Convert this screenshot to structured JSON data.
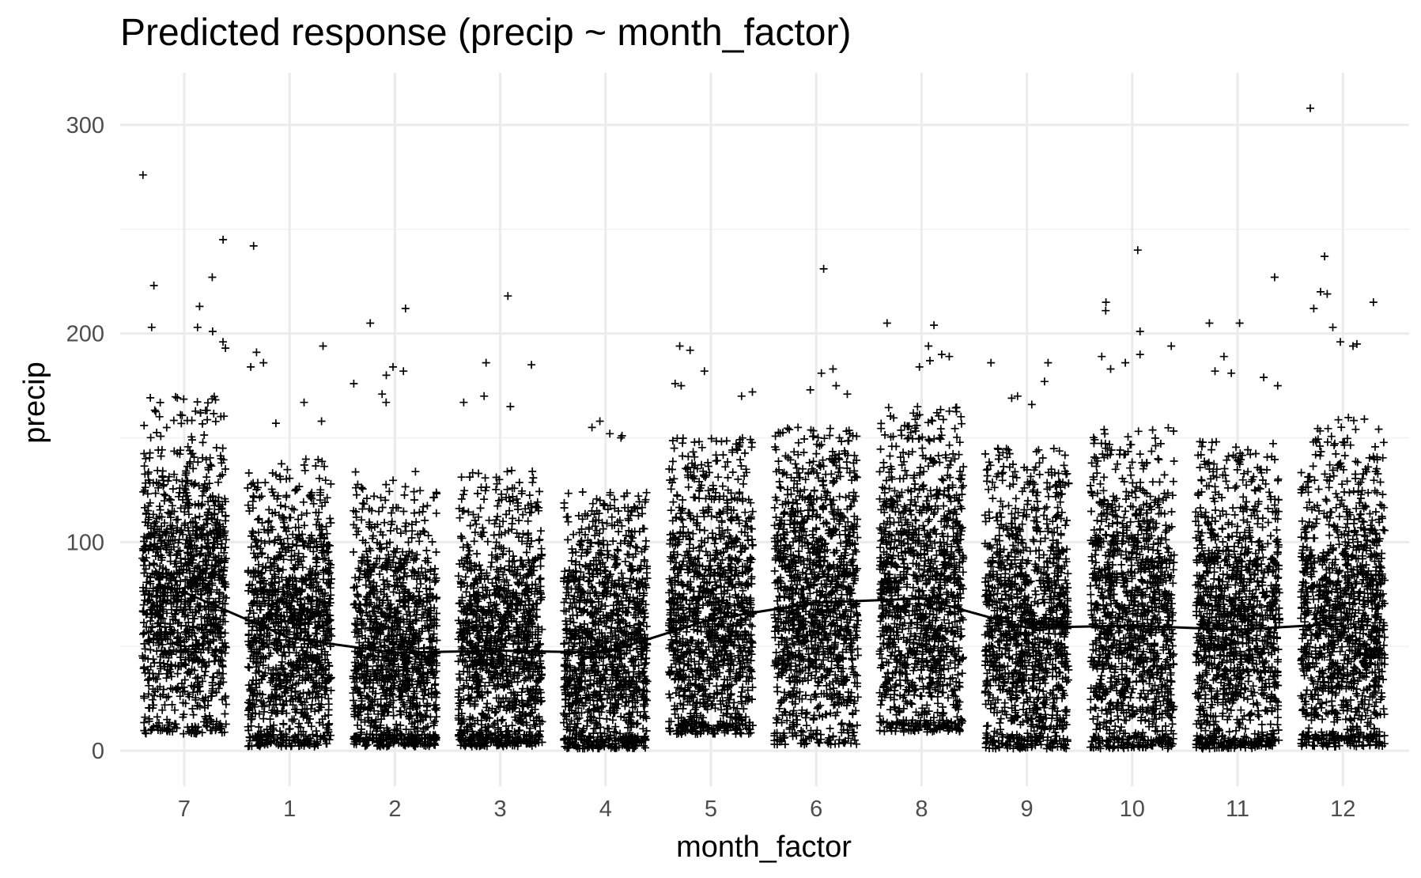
{
  "chart_data": {
    "type": "scatter",
    "title": "Predicted response (precip ~ month_factor)",
    "xlabel": "month_factor",
    "ylabel": "precip",
    "categories": [
      "7",
      "1",
      "2",
      "3",
      "4",
      "5",
      "6",
      "8",
      "9",
      "10",
      "11",
      "12"
    ],
    "y_ticks": [
      0,
      100,
      200,
      300
    ],
    "ylim": [
      -17,
      325
    ],
    "grid": true,
    "legend": "none",
    "marker": "plus",
    "jitter": true,
    "fitted_line": {
      "name": "",
      "values": [
        76,
        54,
        47,
        48,
        47,
        63,
        71,
        73,
        59,
        60,
        58,
        61
      ]
    },
    "series": [
      {
        "name": "",
        "distribution": [
          {
            "category": "7",
            "q_low": 8,
            "q1": 55,
            "median": 76,
            "q3": 100,
            "q_high": 170,
            "outliers": [
              276,
              245,
              227,
              223,
              213,
              203,
              203,
              201,
              196,
              193
            ]
          },
          {
            "category": "1",
            "q_low": 2,
            "q1": 33,
            "median": 54,
            "q3": 78,
            "q_high": 140,
            "outliers": [
              242,
              194,
              191,
              186,
              184,
              167,
              158,
              157
            ]
          },
          {
            "category": "2",
            "q_low": 2,
            "q1": 27,
            "median": 47,
            "q3": 70,
            "q_high": 135,
            "outliers": [
              212,
              205,
              184,
              182,
              180,
              176,
              171,
              167
            ]
          },
          {
            "category": "3",
            "q_low": 2,
            "q1": 28,
            "median": 48,
            "q3": 72,
            "q_high": 135,
            "outliers": [
              218,
              186,
              185,
              170,
              167,
              165
            ]
          },
          {
            "category": "4",
            "q_low": 1,
            "q1": 27,
            "median": 47,
            "q3": 70,
            "q_high": 125,
            "outliers": [
              158,
              155,
              152,
              151,
              150
            ]
          },
          {
            "category": "5",
            "q_low": 8,
            "q1": 42,
            "median": 63,
            "q3": 88,
            "q_high": 150,
            "outliers": [
              194,
              192,
              182,
              176,
              175,
              172,
              170
            ]
          },
          {
            "category": "6",
            "q_low": 3,
            "q1": 48,
            "median": 71,
            "q3": 98,
            "q_high": 155,
            "outliers": [
              231,
              183,
              181,
              175,
              173,
              171
            ]
          },
          {
            "category": "8",
            "q_low": 9,
            "q1": 50,
            "median": 73,
            "q3": 100,
            "q_high": 165,
            "outliers": [
              205,
              204,
              194,
              190,
              189,
              187,
              184
            ]
          },
          {
            "category": "9",
            "q_low": 1,
            "q1": 38,
            "median": 59,
            "q3": 83,
            "q_high": 145,
            "outliers": [
              186,
              186,
              177,
              170,
              169,
              166
            ]
          },
          {
            "category": "10",
            "q_low": 1,
            "q1": 37,
            "median": 60,
            "q3": 87,
            "q_high": 155,
            "outliers": [
              240,
              215,
              211,
              201,
              194,
              190,
              189,
              186,
              183
            ]
          },
          {
            "category": "11",
            "q_low": 1,
            "q1": 36,
            "median": 58,
            "q3": 84,
            "q_high": 150,
            "outliers": [
              227,
              205,
              205,
              189,
              182,
              181,
              179,
              175
            ]
          },
          {
            "category": "12",
            "q_low": 2,
            "q1": 38,
            "median": 61,
            "q3": 88,
            "q_high": 160,
            "outliers": [
              308,
              237,
              220,
              219,
              215,
              212,
              203,
              196,
              195,
              194
            ]
          }
        ]
      }
    ]
  }
}
